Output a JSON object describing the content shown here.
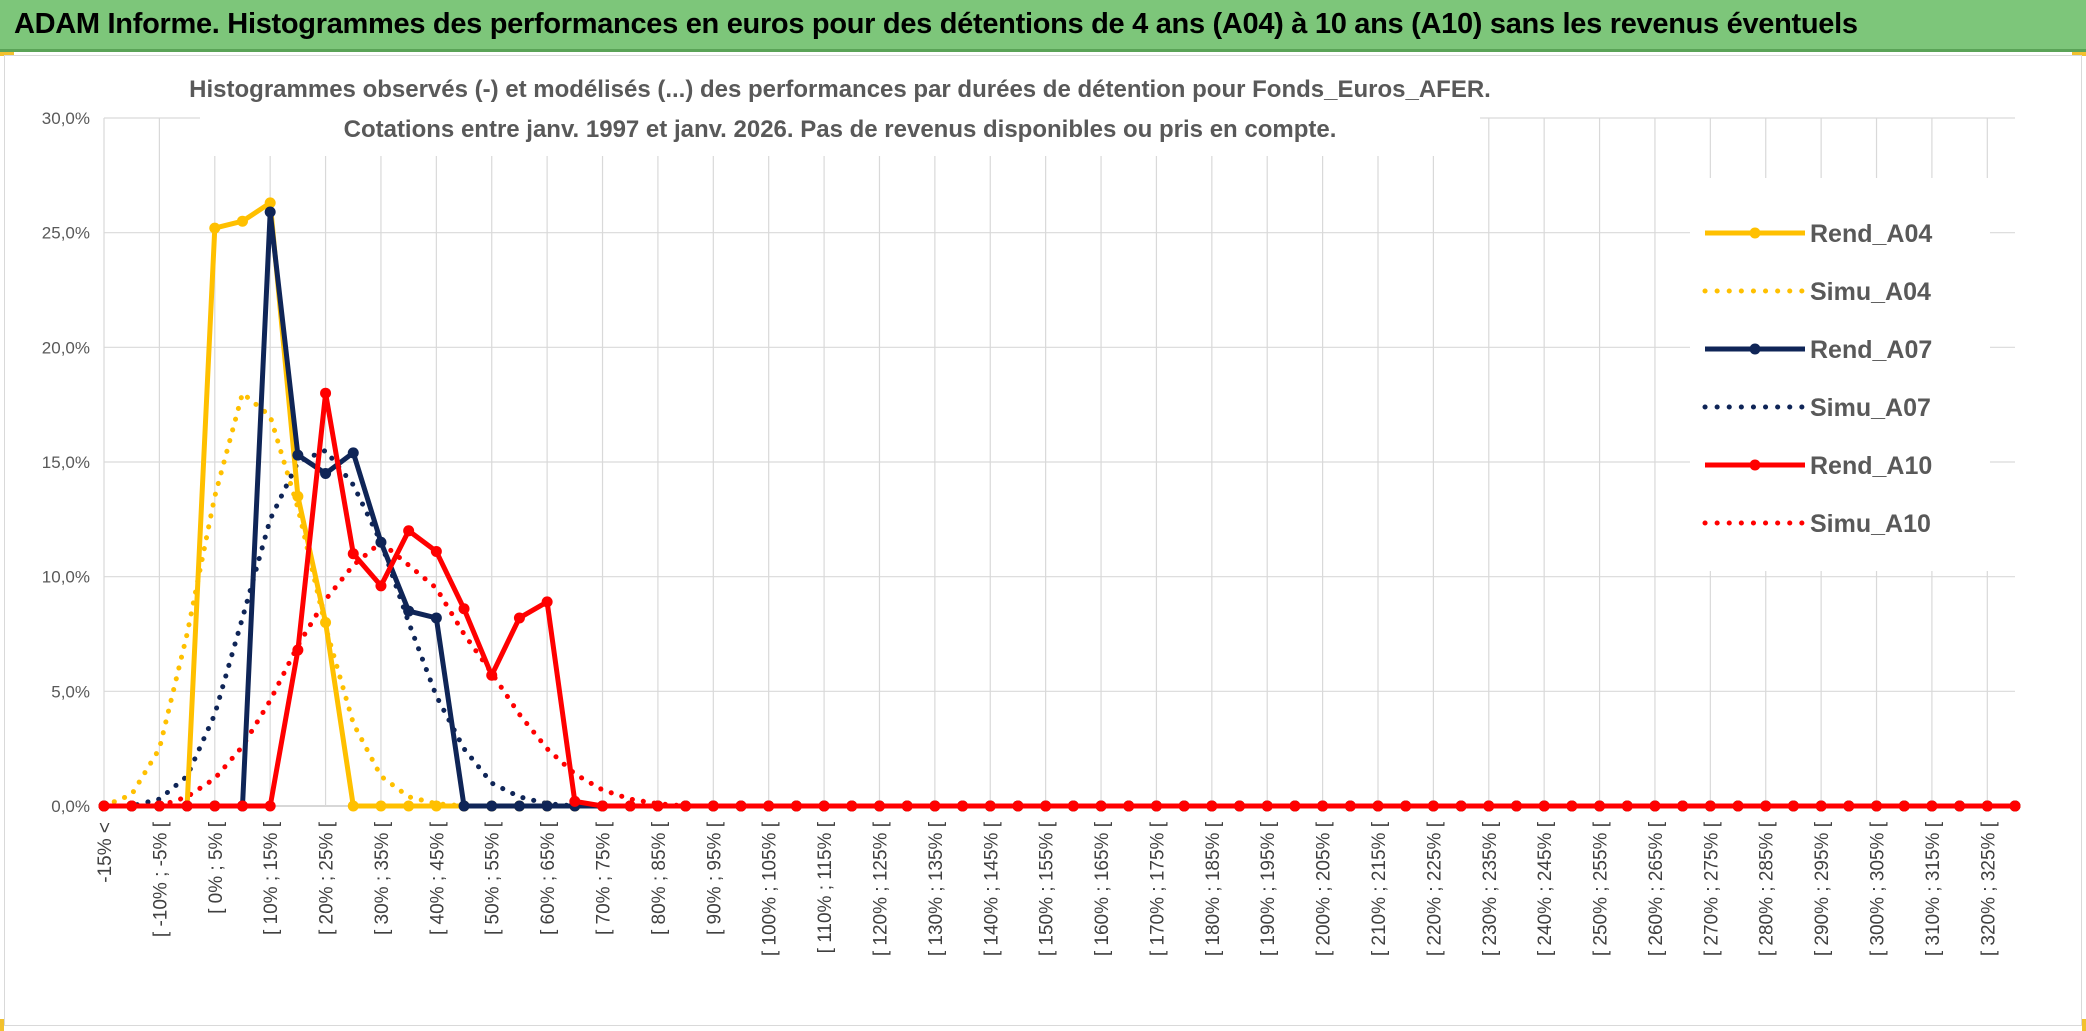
{
  "banner": {
    "title": "ADAM Informe. Histogrammes des performances en euros pour des détentions de 4 ans (A04) à 10 ans (A10) sans les revenus éventuels",
    "color": "#7dc67a"
  },
  "chart_data": {
    "type": "line",
    "title_line1": "Histogrammes observés (-) et modélisés (...) des performances par durées de détention pour Fonds_Euros_AFER.",
    "title_line2": "Cotations entre janv. 1997 et janv. 2026. Pas de revenus disponibles ou pris en compte.",
    "xlabel": "",
    "ylabel": "",
    "ylim": [
      0,
      30
    ],
    "y_ticks": [
      "0,0%",
      "5,0%",
      "10,0%",
      "15,0%",
      "20,0%",
      "25,0%",
      "30,0%"
    ],
    "x_labels": [
      "-15% <",
      "[ -10% ; -5% [",
      "[ 0% ; 5% [",
      "[ 10% ; 15% [",
      "[ 20% ; 25% [",
      "[ 30% ; 35% [",
      "[ 40% ; 45% [",
      "[ 50% ; 55% [",
      "[ 60% ; 65% [",
      "[ 70% ; 75% [",
      "[ 80% ; 85% [",
      "[ 90% ; 95% [",
      "[ 100% ; 105% [",
      "[ 110% ; 115% [",
      "[ 120% ; 125% [",
      "[ 130% ; 135% [",
      "[ 140% ; 145% [",
      "[ 150% ; 155% [",
      "[ 160% ; 165% [",
      "[ 170% ; 175% [",
      "[ 180% ; 185% [",
      "[ 190% ; 195% [",
      "[ 200% ; 205% [",
      "[ 210% ; 215% [",
      "[ 220% ; 225% [",
      "[ 230% ; 235% [",
      "[ 240% ; 245% [",
      "[ 250% ; 255% [",
      "[ 260% ; 265% [",
      "[ 270% ; 275% [",
      "[ 280% ; 285% [",
      "[ 290% ; 295% [",
      "[ 300% ; 305% [",
      "[ 310% ; 315% [",
      "[ 320% ; 325% ["
    ],
    "legend_position": "right",
    "grid": true,
    "series": [
      {
        "name": "Rend_A04",
        "style": "solid",
        "color": "#ffc000",
        "markers": true,
        "values": [
          0,
          0,
          0,
          0,
          25.2,
          25.5,
          26.3,
          13.5,
          8.0,
          0,
          0,
          0,
          0,
          0,
          0,
          0,
          0,
          0,
          0,
          0,
          0,
          0,
          0,
          0,
          0,
          0,
          0,
          0,
          0,
          0,
          0,
          0,
          0,
          0,
          0,
          0,
          0,
          0,
          0,
          0,
          0,
          0,
          0,
          0,
          0,
          0,
          0,
          0,
          0,
          0,
          0,
          0,
          0,
          0,
          0,
          0,
          0,
          0,
          0,
          0,
          0,
          0,
          0,
          0,
          0,
          0,
          0,
          0,
          0,
          0
        ]
      },
      {
        "name": "Simu_A04",
        "style": "dotted",
        "color": "#ffc000",
        "markers": false,
        "values": [
          0,
          0.5,
          2.5,
          7.5,
          13.5,
          18.0,
          17.0,
          13.0,
          7.8,
          3.6,
          1.3,
          0.4,
          0.1,
          0,
          0,
          0,
          0,
          0,
          0,
          0,
          0,
          0,
          0,
          0,
          0,
          0,
          0,
          0,
          0,
          0,
          0,
          0,
          0,
          0,
          0,
          0,
          0,
          0,
          0,
          0,
          0,
          0,
          0,
          0,
          0,
          0,
          0,
          0,
          0,
          0,
          0,
          0,
          0,
          0,
          0,
          0,
          0,
          0,
          0,
          0,
          0,
          0,
          0,
          0,
          0,
          0,
          0,
          0,
          0,
          0
        ]
      },
      {
        "name": "Rend_A07",
        "style": "solid",
        "color": "#0f2557",
        "markers": true,
        "values": [
          0,
          0,
          0,
          0,
          0,
          0,
          25.9,
          15.3,
          14.5,
          15.4,
          11.5,
          8.5,
          8.2,
          0,
          0,
          0,
          0,
          0,
          0,
          0,
          0,
          0,
          0,
          0,
          0,
          0,
          0,
          0,
          0,
          0,
          0,
          0,
          0,
          0,
          0,
          0,
          0,
          0,
          0,
          0,
          0,
          0,
          0,
          0,
          0,
          0,
          0,
          0,
          0,
          0,
          0,
          0,
          0,
          0,
          0,
          0,
          0,
          0,
          0,
          0,
          0,
          0,
          0,
          0,
          0,
          0,
          0,
          0,
          0,
          0
        ]
      },
      {
        "name": "Simu_A07",
        "style": "dotted",
        "color": "#0f2557",
        "markers": false,
        "values": [
          0,
          0,
          0.3,
          1.3,
          4.0,
          8.2,
          12.5,
          15.0,
          15.5,
          14.0,
          11.5,
          8.0,
          4.8,
          2.5,
          1.0,
          0.4,
          0.1,
          0,
          0,
          0,
          0,
          0,
          0,
          0,
          0,
          0,
          0,
          0,
          0,
          0,
          0,
          0,
          0,
          0,
          0,
          0,
          0,
          0,
          0,
          0,
          0,
          0,
          0,
          0,
          0,
          0,
          0,
          0,
          0,
          0,
          0,
          0,
          0,
          0,
          0,
          0,
          0,
          0,
          0,
          0,
          0,
          0,
          0,
          0,
          0,
          0,
          0,
          0,
          0,
          0
        ]
      },
      {
        "name": "Rend_A10",
        "style": "solid",
        "color": "#ff0000",
        "markers": true,
        "values": [
          0,
          0,
          0,
          0,
          0,
          0,
          0,
          6.8,
          18.0,
          11.0,
          9.6,
          12.0,
          11.1,
          8.6,
          5.7,
          8.2,
          8.9,
          0.2,
          0,
          0,
          0,
          0,
          0,
          0,
          0,
          0,
          0,
          0,
          0,
          0,
          0,
          0,
          0,
          0,
          0,
          0,
          0,
          0,
          0,
          0,
          0,
          0,
          0,
          0,
          0,
          0,
          0,
          0,
          0,
          0,
          0,
          0,
          0,
          0,
          0,
          0,
          0,
          0,
          0,
          0,
          0,
          0,
          0,
          0,
          0,
          0,
          0,
          0,
          0,
          0
        ]
      },
      {
        "name": "Simu_A10",
        "style": "dotted",
        "color": "#ff0000",
        "markers": false,
        "values": [
          0,
          0,
          0,
          0.4,
          1.2,
          2.6,
          4.6,
          7.0,
          9.0,
          10.5,
          11.5,
          10.5,
          9.5,
          7.5,
          5.8,
          4.0,
          2.5,
          1.4,
          0.7,
          0.3,
          0.1,
          0,
          0,
          0,
          0,
          0,
          0,
          0,
          0,
          0,
          0,
          0,
          0,
          0,
          0,
          0,
          0,
          0,
          0,
          0,
          0,
          0,
          0,
          0,
          0,
          0,
          0,
          0,
          0,
          0,
          0,
          0,
          0,
          0,
          0,
          0,
          0,
          0,
          0,
          0,
          0,
          0,
          0,
          0,
          0,
          0,
          0,
          0,
          0,
          0
        ]
      }
    ]
  }
}
